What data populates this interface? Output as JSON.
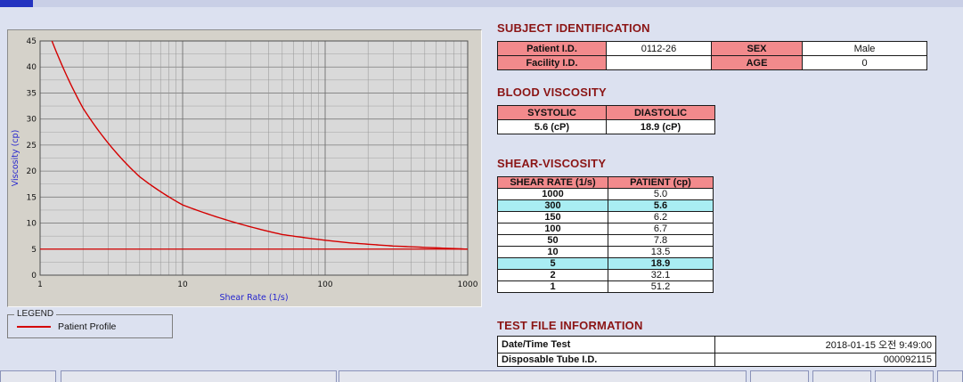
{
  "chart_data": {
    "type": "line",
    "title": "",
    "xlabel": "Shear Rate (1/s)",
    "ylabel": "Viscosity (cp)",
    "x_scale": "log",
    "xlim": [
      1,
      1000
    ],
    "ylim": [
      0,
      45
    ],
    "x_ticks": [
      1,
      10,
      100,
      1000
    ],
    "y_ticks": [
      0,
      5,
      10,
      15,
      20,
      25,
      30,
      35,
      40,
      45
    ],
    "grid": true,
    "legend_position": "below-left",
    "series": [
      {
        "name": "Patient Profile",
        "color": "#d40000",
        "x": [
          1,
          2,
          5,
          10,
          50,
          100,
          150,
          300,
          1000
        ],
        "y": [
          51.2,
          32.1,
          18.9,
          13.5,
          7.8,
          6.7,
          6.2,
          5.6,
          5.0
        ]
      }
    ],
    "reference_line_y": 5.0
  },
  "legend": {
    "title": "LEGEND",
    "items": [
      {
        "label": "Patient Profile",
        "color": "#d40000"
      }
    ]
  },
  "subject_identification": {
    "title": "SUBJECT IDENTIFICATION",
    "rows": [
      {
        "label1": "Patient I.D.",
        "value1": "0112-26",
        "label2": "SEX",
        "value2": "Male"
      },
      {
        "label1": "Facility I.D.",
        "value1": "",
        "label2": "AGE",
        "value2": "0"
      }
    ]
  },
  "blood_viscosity": {
    "title": "BLOOD VISCOSITY",
    "headers": [
      "SYSTOLIC",
      "DIASTOLIC"
    ],
    "values": [
      "5.6 (cP)",
      "18.9 (cP)"
    ]
  },
  "shear_viscosity": {
    "title": "SHEAR-VISCOSITY",
    "headers": [
      "SHEAR RATE (1/s)",
      "PATIENT (cp)"
    ],
    "rows": [
      {
        "rate": "1000",
        "value": "5.0",
        "highlight": false
      },
      {
        "rate": "300",
        "value": "5.6",
        "highlight": true
      },
      {
        "rate": "150",
        "value": "6.2",
        "highlight": false
      },
      {
        "rate": "100",
        "value": "6.7",
        "highlight": false
      },
      {
        "rate": "50",
        "value": "7.8",
        "highlight": false
      },
      {
        "rate": "10",
        "value": "13.5",
        "highlight": false
      },
      {
        "rate": "5",
        "value": "18.9",
        "highlight": true
      },
      {
        "rate": "2",
        "value": "32.1",
        "highlight": false
      },
      {
        "rate": "1",
        "value": "51.2",
        "highlight": false
      }
    ]
  },
  "test_file_information": {
    "title": "TEST FILE INFORMATION",
    "rows": [
      {
        "label": "Date/Time Test",
        "value": "2018-01-15  오전 9:49:00"
      },
      {
        "label": "Disposable Tube I.D.",
        "value": "000092115"
      }
    ]
  },
  "colors": {
    "header_pink": "#f28a8c",
    "highlight_cyan": "#a9edf3",
    "section_title_maroon": "#8b1515",
    "curve_red": "#d40000",
    "axis_label_blue": "#2626cf"
  }
}
